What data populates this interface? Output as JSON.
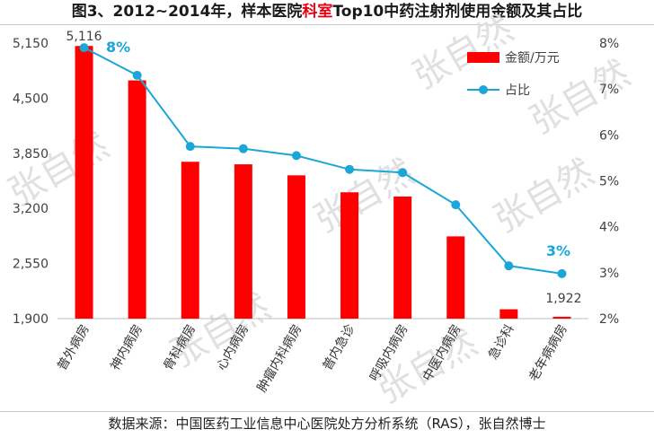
{
  "header": {
    "title_pre": "图3、2012~2014年，样本医院",
    "title_hl": "科室",
    "title_post": "Top10中药注射剂使用金额及其占比"
  },
  "footer": {
    "source": "数据来源：中国医药工业信息中心医院处方分析系统（RAS），张自然博士"
  },
  "watermark": "张自然",
  "colors": {
    "bar": "#ff0000",
    "line": "#1aa7d8",
    "pct_label": "#1aa7d8",
    "hl": "#e60012"
  },
  "chart_data": {
    "type": "bar+line",
    "categories": [
      "普外病房",
      "神内病房",
      "骨科病房",
      "心内病房",
      "肿瘤内科病房",
      "普内急诊",
      "呼吸内病房",
      "中医内病房",
      "急诊科",
      "老年病病房"
    ],
    "series": [
      {
        "name": "金额/万元",
        "type": "bar",
        "axis": "left",
        "values": [
          5116,
          4710,
          3750,
          3720,
          3590,
          3390,
          3340,
          2870,
          2010,
          1922
        ]
      },
      {
        "name": "占比",
        "type": "line",
        "axis": "right",
        "values": [
          7.9,
          7.3,
          5.75,
          5.7,
          5.55,
          5.25,
          5.18,
          4.48,
          3.15,
          2.98
        ]
      }
    ],
    "y_left": {
      "min": 1900,
      "max": 5150,
      "ticks": [
        "1,900",
        "2,550",
        "3,200",
        "3,850",
        "4,500",
        "5,150"
      ],
      "tick_values": [
        1900,
        2550,
        3200,
        3850,
        4500,
        5150
      ]
    },
    "y_right": {
      "min": 2,
      "max": 8,
      "ticks": [
        "2%",
        "3%",
        "4%",
        "5%",
        "6%",
        "7%",
        "8%"
      ],
      "tick_values": [
        2,
        3,
        4,
        5,
        6,
        7,
        8
      ]
    },
    "data_labels": {
      "first_bar": "5,116",
      "last_bar": "1,922",
      "first_pct": "8%",
      "last_pct": "3%"
    },
    "legend": {
      "bar_label": "金额/万元",
      "line_label": "占比",
      "position": "top-right"
    }
  }
}
